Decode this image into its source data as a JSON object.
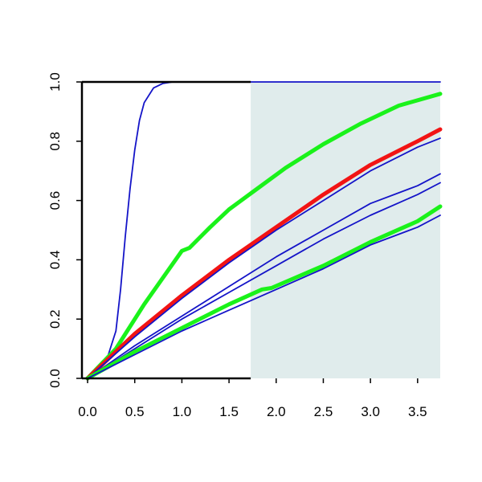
{
  "chart_data": {
    "type": "line",
    "title": "",
    "xlabel": "",
    "ylabel": "",
    "xlim": [
      -0.06,
      3.74
    ],
    "ylim": [
      0,
      1
    ],
    "grid": false,
    "legend": "none",
    "x_ticks": [
      "0.0",
      "0.5",
      "1.0",
      "1.5",
      "2.0",
      "2.5",
      "3.0",
      "3.5"
    ],
    "y_ticks": [
      "0.0",
      "0.2",
      "0.4",
      "0.6",
      "0.8",
      "1.0"
    ],
    "shaded_region": {
      "x": [
        1.73,
        3.74
      ],
      "color": "#e0ecec"
    },
    "colors": {
      "blue": "#1414c8",
      "green": "#1af21a",
      "red": "#f21414"
    },
    "series": [
      {
        "color": "blue",
        "weight": "thin",
        "points": [
          [
            0,
            0
          ],
          [
            0.1,
            0.02
          ],
          [
            0.2,
            0.06
          ],
          [
            0.3,
            0.16
          ],
          [
            0.35,
            0.3
          ],
          [
            0.4,
            0.48
          ],
          [
            0.45,
            0.64
          ],
          [
            0.5,
            0.77
          ],
          [
            0.55,
            0.87
          ],
          [
            0.6,
            0.93
          ],
          [
            0.7,
            0.98
          ],
          [
            0.8,
            0.995
          ],
          [
            0.9,
            1.0
          ],
          [
            1.0,
            1.0
          ],
          [
            3.74,
            1.0
          ]
        ]
      },
      {
        "color": "green",
        "weight": "thick",
        "points": [
          [
            0,
            0
          ],
          [
            0.3,
            0.1
          ],
          [
            0.6,
            0.25
          ],
          [
            1.0,
            0.43
          ],
          [
            1.08,
            0.44
          ],
          [
            1.3,
            0.51
          ],
          [
            1.5,
            0.57
          ],
          [
            1.8,
            0.64
          ],
          [
            2.1,
            0.71
          ],
          [
            2.5,
            0.79
          ],
          [
            2.9,
            0.86
          ],
          [
            3.3,
            0.92
          ],
          [
            3.74,
            0.96
          ]
        ]
      },
      {
        "color": "red",
        "weight": "thick",
        "points": [
          [
            0,
            0
          ],
          [
            0.5,
            0.15
          ],
          [
            1.0,
            0.28
          ],
          [
            1.5,
            0.4
          ],
          [
            2.0,
            0.51
          ],
          [
            2.5,
            0.62
          ],
          [
            3.0,
            0.72
          ],
          [
            3.5,
            0.8
          ],
          [
            3.74,
            0.84
          ]
        ]
      },
      {
        "color": "blue",
        "weight": "thin",
        "points": [
          [
            0,
            0
          ],
          [
            0.5,
            0.14
          ],
          [
            1.0,
            0.27
          ],
          [
            1.5,
            0.39
          ],
          [
            2.0,
            0.5
          ],
          [
            2.5,
            0.6
          ],
          [
            3.0,
            0.7
          ],
          [
            3.5,
            0.78
          ],
          [
            3.74,
            0.81
          ]
        ]
      },
      {
        "color": "blue",
        "weight": "thin",
        "points": [
          [
            0,
            0
          ],
          [
            0.5,
            0.11
          ],
          [
            1.0,
            0.21
          ],
          [
            1.5,
            0.31
          ],
          [
            2.0,
            0.41
          ],
          [
            2.5,
            0.5
          ],
          [
            3.0,
            0.59
          ],
          [
            3.5,
            0.65
          ],
          [
            3.74,
            0.69
          ]
        ]
      },
      {
        "color": "blue",
        "weight": "thin",
        "points": [
          [
            0,
            0
          ],
          [
            0.5,
            0.1
          ],
          [
            1.0,
            0.2
          ],
          [
            1.5,
            0.29
          ],
          [
            2.0,
            0.38
          ],
          [
            2.5,
            0.47
          ],
          [
            3.0,
            0.55
          ],
          [
            3.5,
            0.62
          ],
          [
            3.74,
            0.66
          ]
        ]
      },
      {
        "color": "green",
        "weight": "thick",
        "points": [
          [
            0,
            0
          ],
          [
            0.5,
            0.09
          ],
          [
            1.0,
            0.17
          ],
          [
            1.5,
            0.25
          ],
          [
            1.85,
            0.3
          ],
          [
            1.95,
            0.305
          ],
          [
            2.5,
            0.38
          ],
          [
            3.0,
            0.46
          ],
          [
            3.5,
            0.53
          ],
          [
            3.74,
            0.58
          ]
        ]
      },
      {
        "color": "blue",
        "weight": "thin",
        "points": [
          [
            0,
            0
          ],
          [
            0.5,
            0.08
          ],
          [
            1.0,
            0.16
          ],
          [
            1.5,
            0.23
          ],
          [
            2.0,
            0.3
          ],
          [
            2.5,
            0.37
          ],
          [
            3.0,
            0.45
          ],
          [
            3.5,
            0.51
          ],
          [
            3.74,
            0.55
          ]
        ]
      }
    ]
  }
}
